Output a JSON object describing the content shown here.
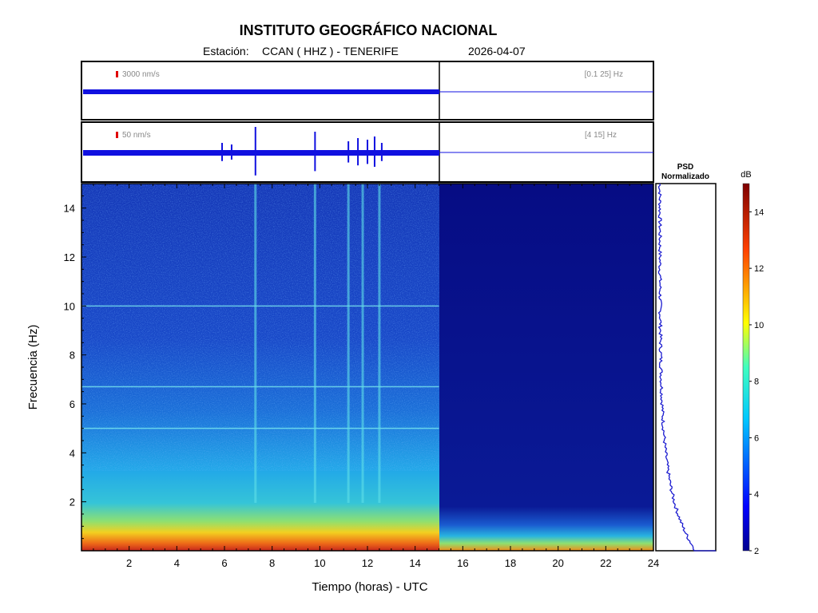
{
  "header": {
    "title": "INSTITUTO GEOGRÁFICO NACIONAL",
    "station_prefix": "Estación:",
    "station": "CCAN ( HHZ ) - TENERIFE",
    "date": "2026-04-07"
  },
  "chart_data": [
    {
      "type": "line",
      "panel": "seismogram-broadband",
      "scale_label": "3000 nm/s",
      "band_label": "[0.1 25] Hz",
      "x_range": [
        0,
        24
      ],
      "data_until_hours": 15,
      "events_hours": []
    },
    {
      "type": "line",
      "panel": "seismogram-filtered",
      "scale_label": "50 nm/s",
      "band_label": "[4 15] Hz",
      "x_range": [
        0,
        24
      ],
      "data_until_hours": 15,
      "events_hours": [
        5.9,
        6.3,
        7.3,
        9.8,
        11.2,
        11.6,
        12.0,
        12.3,
        12.6
      ]
    },
    {
      "type": "heatmap",
      "panel": "spectrogram",
      "xlabel": "Tiempo (horas) - UTC",
      "ylabel": "Frecuencia  (Hz)",
      "xlim": [
        0,
        24
      ],
      "ylim": [
        0,
        15
      ],
      "x_ticks": [
        "2",
        "4",
        "6",
        "8",
        "10",
        "12",
        "14",
        "16",
        "18",
        "20",
        "22",
        "24"
      ],
      "y_ticks": [
        "2",
        "4",
        "6",
        "8",
        "10",
        "12",
        "14"
      ],
      "data_until_hours": 15,
      "horizontal_lines_hz": [
        5.0,
        6.7,
        10.0
      ],
      "vertical_streaks_hours": [
        7.3,
        9.8,
        11.2,
        11.8,
        12.5
      ]
    },
    {
      "type": "line",
      "panel": "psd-normalizado",
      "title_line1": "PSD",
      "title_line2": "Normalizado",
      "ylim": [
        0,
        15
      ]
    },
    {
      "type": "heatmap",
      "panel": "colorbar",
      "unit": "dB",
      "range": [
        2,
        15
      ],
      "ticks": [
        "2",
        "4",
        "6",
        "8",
        "10",
        "12",
        "14"
      ]
    }
  ]
}
